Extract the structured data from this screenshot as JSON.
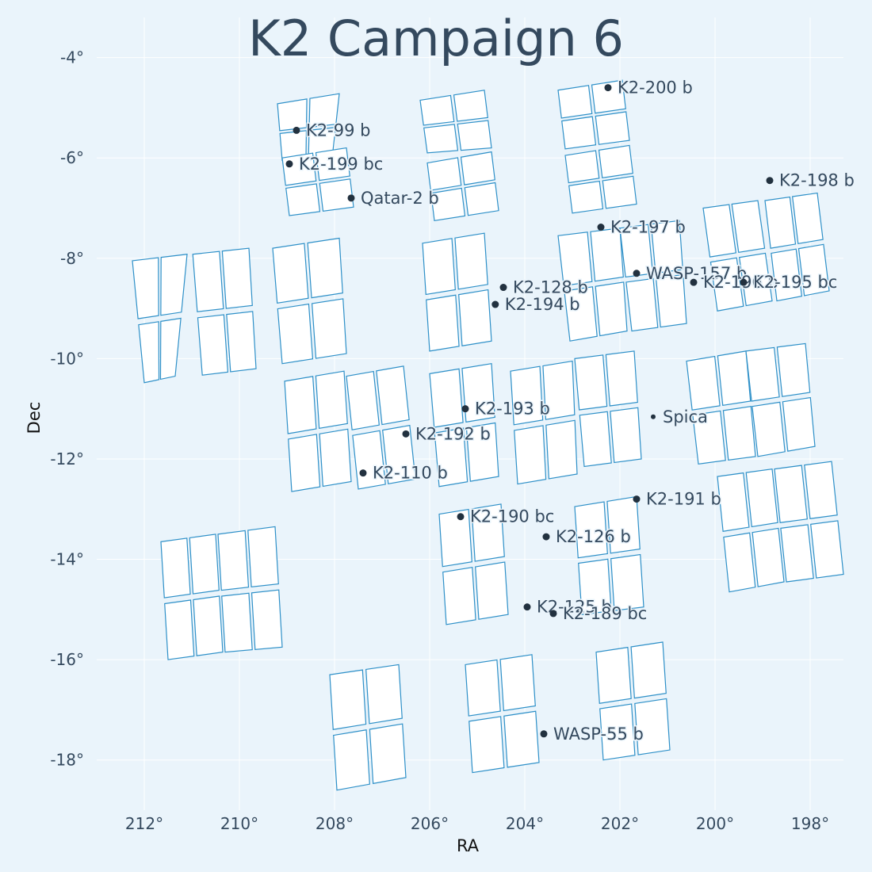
{
  "chart_data": {
    "type": "scatter",
    "title": "K2 Campaign 6",
    "xlabel": "RA",
    "ylabel": "Dec",
    "xlim": [
      213.0,
      197.3
    ],
    "ylim": [
      -19.0,
      -3.2
    ],
    "x_ticks": [
      212,
      210,
      208,
      206,
      204,
      202,
      200,
      198
    ],
    "x_tick_labels": [
      "212°",
      "210°",
      "208°",
      "206°",
      "204°",
      "202°",
      "200°",
      "198°"
    ],
    "y_ticks": [
      -4,
      -6,
      -8,
      -10,
      -12,
      -14,
      -16,
      -18
    ],
    "y_tick_labels": [
      "-4°",
      "-6°",
      "-8°",
      "-10°",
      "-12°",
      "-14°",
      "-16°",
      "-18°"
    ],
    "grid": true,
    "modules": [
      {
        "corners": [
          [
            209.2,
            -4.92
          ],
          [
            207.9,
            -4.72
          ],
          [
            208.05,
            -6.0
          ],
          [
            209.1,
            -6.05
          ]
        ]
      },
      {
        "corners": [
          [
            206.2,
            -4.85
          ],
          [
            204.85,
            -4.65
          ],
          [
            204.7,
            -5.8
          ],
          [
            206.05,
            -5.9
          ]
        ]
      },
      {
        "corners": [
          [
            203.3,
            -4.65
          ],
          [
            201.95,
            -4.45
          ],
          [
            201.8,
            -5.65
          ],
          [
            203.15,
            -5.82
          ]
        ]
      },
      {
        "corners": [
          [
            209.1,
            -6.0
          ],
          [
            207.75,
            -5.8
          ],
          [
            207.6,
            -6.98
          ],
          [
            208.95,
            -7.15
          ]
        ]
      },
      {
        "corners": [
          [
            206.05,
            -6.1
          ],
          [
            204.7,
            -5.88
          ],
          [
            204.55,
            -7.05
          ],
          [
            205.9,
            -7.25
          ]
        ]
      },
      {
        "corners": [
          [
            203.15,
            -5.95
          ],
          [
            201.8,
            -5.75
          ],
          [
            201.65,
            -6.92
          ],
          [
            203.0,
            -7.1
          ]
        ]
      },
      {
        "corners": [
          [
            212.25,
            -8.05
          ],
          [
            211.1,
            -7.92
          ],
          [
            211.35,
            -10.35
          ],
          [
            212.0,
            -10.48
          ]
        ]
      },
      {
        "corners": [
          [
            210.98,
            -7.92
          ],
          [
            209.8,
            -7.8
          ],
          [
            209.65,
            -10.2
          ],
          [
            210.78,
            -10.33
          ]
        ]
      },
      {
        "corners": [
          [
            209.3,
            -7.8
          ],
          [
            207.9,
            -7.6
          ],
          [
            207.75,
            -9.9
          ],
          [
            209.1,
            -10.1
          ]
        ]
      },
      {
        "corners": [
          [
            206.15,
            -7.7
          ],
          [
            204.85,
            -7.5
          ],
          [
            204.7,
            -9.65
          ],
          [
            206.0,
            -9.85
          ]
        ]
      },
      {
        "corners": [
          [
            203.3,
            -7.55
          ],
          [
            202.0,
            -7.4
          ],
          [
            201.85,
            -9.45
          ],
          [
            203.05,
            -9.65
          ]
        ]
      },
      {
        "corners": [
          [
            202.0,
            -7.4
          ],
          [
            200.75,
            -7.25
          ],
          [
            200.6,
            -9.3
          ],
          [
            201.75,
            -9.45
          ]
        ]
      },
      {
        "corners": [
          [
            200.25,
            -7.0
          ],
          [
            199.1,
            -6.85
          ],
          [
            198.8,
            -8.85
          ],
          [
            199.95,
            -9.05
          ]
        ]
      },
      {
        "corners": [
          [
            198.95,
            -6.85
          ],
          [
            197.85,
            -6.7
          ],
          [
            197.6,
            -8.65
          ],
          [
            198.7,
            -8.85
          ]
        ]
      },
      {
        "corners": [
          [
            209.05,
            -10.45
          ],
          [
            207.8,
            -10.25
          ],
          [
            207.65,
            -12.45
          ],
          [
            208.9,
            -12.65
          ]
        ]
      },
      {
        "corners": [
          [
            207.75,
            -10.35
          ],
          [
            206.55,
            -10.15
          ],
          [
            206.3,
            -12.4
          ],
          [
            207.5,
            -12.6
          ]
        ]
      },
      {
        "corners": [
          [
            206.0,
            -10.3
          ],
          [
            204.7,
            -10.1
          ],
          [
            204.55,
            -12.35
          ],
          [
            205.8,
            -12.55
          ]
        ]
      },
      {
        "corners": [
          [
            204.3,
            -10.25
          ],
          [
            203.0,
            -10.05
          ],
          [
            202.9,
            -12.3
          ],
          [
            204.15,
            -12.5
          ]
        ]
      },
      {
        "corners": [
          [
            202.95,
            -10.0
          ],
          [
            201.7,
            -9.85
          ],
          [
            201.55,
            -12.0
          ],
          [
            202.75,
            -12.15
          ]
        ]
      },
      {
        "corners": [
          [
            200.6,
            -10.05
          ],
          [
            199.35,
            -9.85
          ],
          [
            199.15,
            -11.95
          ],
          [
            200.35,
            -12.1
          ]
        ]
      },
      {
        "corners": [
          [
            199.35,
            -9.85
          ],
          [
            198.1,
            -9.7
          ],
          [
            197.9,
            -11.75
          ],
          [
            199.1,
            -11.95
          ]
        ]
      },
      {
        "corners": [
          [
            205.8,
            -13.1
          ],
          [
            204.5,
            -12.9
          ],
          [
            204.35,
            -15.1
          ],
          [
            205.65,
            -15.3
          ]
        ]
      },
      {
        "corners": [
          [
            202.95,
            -12.95
          ],
          [
            201.65,
            -12.75
          ],
          [
            201.5,
            -14.95
          ],
          [
            202.8,
            -15.1
          ]
        ]
      },
      {
        "corners": [
          [
            199.95,
            -12.35
          ],
          [
            198.8,
            -12.2
          ],
          [
            198.55,
            -14.45
          ],
          [
            199.7,
            -14.65
          ]
        ]
      },
      {
        "corners": [
          [
            198.75,
            -12.2
          ],
          [
            197.55,
            -12.05
          ],
          [
            197.3,
            -14.3
          ],
          [
            198.5,
            -14.45
          ]
        ]
      },
      {
        "corners": [
          [
            211.65,
            -13.65
          ],
          [
            210.5,
            -13.5
          ],
          [
            210.35,
            -15.85
          ],
          [
            211.5,
            -16.0
          ]
        ]
      },
      {
        "corners": [
          [
            210.45,
            -13.5
          ],
          [
            209.25,
            -13.35
          ],
          [
            209.1,
            -15.75
          ],
          [
            210.3,
            -15.85
          ]
        ]
      },
      {
        "corners": [
          [
            208.1,
            -16.3
          ],
          [
            206.65,
            -16.1
          ],
          [
            206.5,
            -18.35
          ],
          [
            207.95,
            -18.6
          ]
        ]
      },
      {
        "corners": [
          [
            205.25,
            -16.1
          ],
          [
            203.85,
            -15.9
          ],
          [
            203.7,
            -18.05
          ],
          [
            205.1,
            -18.25
          ]
        ]
      },
      {
        "corners": [
          [
            202.5,
            -15.85
          ],
          [
            201.1,
            -15.65
          ],
          [
            200.95,
            -17.8
          ],
          [
            202.35,
            -18.0
          ]
        ]
      }
    ],
    "points": [
      {
        "name": "K2-200 b",
        "ra": 202.25,
        "dec": -4.6
      },
      {
        "name": "K2-99 b",
        "ra": 208.8,
        "dec": -5.45
      },
      {
        "name": "K2-199 bc",
        "ra": 208.95,
        "dec": -6.12
      },
      {
        "name": "Qatar-2 b",
        "ra": 207.65,
        "dec": -6.8
      },
      {
        "name": "K2-198 b",
        "ra": 198.85,
        "dec": -6.45
      },
      {
        "name": "K2-197 b",
        "ra": 202.4,
        "dec": -7.38
      },
      {
        "name": "WASP-157 b",
        "ra": 201.65,
        "dec": -8.3
      },
      {
        "name": "K2-196 b",
        "ra": 200.45,
        "dec": -8.48
      },
      {
        "name": "K2-195 bc",
        "ra": 199.4,
        "dec": -8.48
      },
      {
        "name": "K2-128 b",
        "ra": 204.45,
        "dec": -8.58
      },
      {
        "name": "K2-194 b",
        "ra": 204.62,
        "dec": -8.92
      },
      {
        "name": "K2-193 b",
        "ra": 205.25,
        "dec": -11.0
      },
      {
        "name": "Spica",
        "ra": 201.3,
        "dec": -11.16,
        "small": true
      },
      {
        "name": "K2-192 b",
        "ra": 206.5,
        "dec": -11.5
      },
      {
        "name": "K2-110 b",
        "ra": 207.4,
        "dec": -12.28
      },
      {
        "name": "K2-191 b",
        "ra": 201.65,
        "dec": -12.8
      },
      {
        "name": "K2-190 bc",
        "ra": 205.35,
        "dec": -13.15
      },
      {
        "name": "K2-126 b",
        "ra": 203.55,
        "dec": -13.55
      },
      {
        "name": "K2-125 b",
        "ra": 203.95,
        "dec": -14.95
      },
      {
        "name": "K2-189 bc",
        "ra": 203.4,
        "dec": -15.08
      },
      {
        "name": "WASP-55 b",
        "ra": 203.6,
        "dec": -17.48
      }
    ]
  }
}
